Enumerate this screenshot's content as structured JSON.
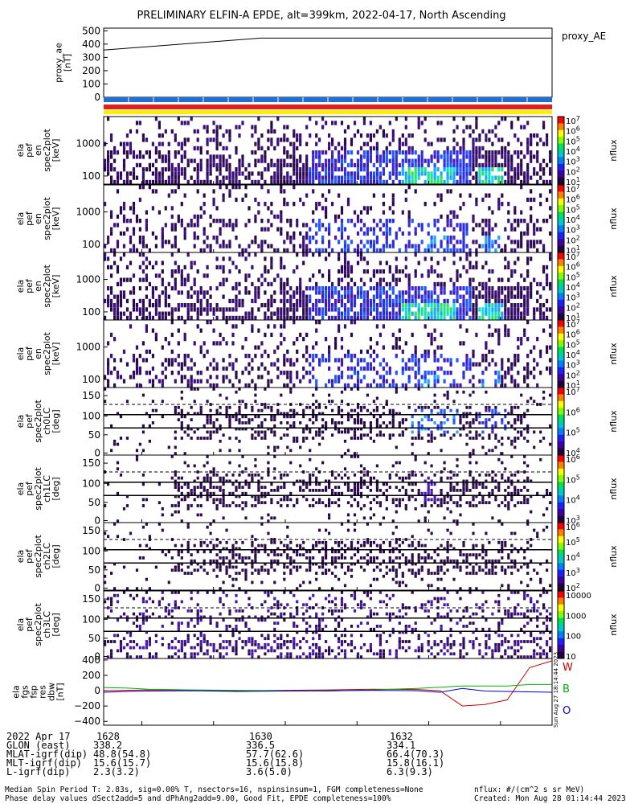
{
  "title": "PRELIMINARY ELFIN-A EPDE, alt=399km, 2022-04-17, North Ascending",
  "side_stamp": "Sun Aug 27 18:14:44 2023",
  "proxy_ae": {
    "legend": "proxy_AE",
    "ylabel": "proxy_ae\n[nT]",
    "ticks": [
      "500",
      "400",
      "300",
      "200",
      "100",
      "0"
    ],
    "ylim": [
      0,
      520
    ],
    "line": {
      "x": [
        0,
        0.35,
        1
      ],
      "y": [
        355,
        445,
        445
      ]
    }
  },
  "status_bars": {
    "colors": [
      "#1e6fd9",
      "#e02020",
      "#ffee00"
    ]
  },
  "spectrogram_panels": [
    {
      "kind": "energy",
      "label": "ela\npef\nen\nspec2plot\n[keV]",
      "ticks": [
        "1000",
        "100"
      ],
      "cb_label": "nflux",
      "cb_ticks": [
        "10^7",
        "10^6",
        "10^5",
        "10^4",
        "10^3",
        "10^2",
        "10^1"
      ],
      "hot": true
    },
    {
      "kind": "energy",
      "label": "ela\npef\nen\nspec2plot\n[keV]",
      "ticks": [
        "1000",
        "100"
      ],
      "cb_label": "nflux",
      "cb_ticks": [
        "10^7",
        "10^6",
        "10^5",
        "10^4",
        "10^3",
        "10^2",
        "10^1"
      ],
      "hot": false
    },
    {
      "kind": "energy",
      "label": "ela\npef\nen\nspec2plot\n[keV]",
      "ticks": [
        "1000",
        "100"
      ],
      "cb_label": "nflux",
      "cb_ticks": [
        "10^7",
        "10^6",
        "10^5",
        "10^4",
        "10^3",
        "10^2",
        "10^1"
      ],
      "hot": true
    },
    {
      "kind": "energy",
      "label": "ela\npef\nen\nspec2plot\n[keV]",
      "ticks": [
        "1000",
        "100"
      ],
      "cb_label": "nflux",
      "cb_ticks": [
        "10^7",
        "10^6",
        "10^5",
        "10^4",
        "10^3",
        "10^2",
        "10^1"
      ],
      "hot": false
    },
    {
      "kind": "pitch",
      "label": "ela\npef\nspec2plot\nch0LC\n[deg]",
      "ticks": [
        "150",
        "100",
        "50",
        "0"
      ],
      "cb_label": "nflux",
      "cb_ticks": [
        "10^7",
        "10^6",
        "10^5",
        "10^4"
      ],
      "hot": true
    },
    {
      "kind": "pitch",
      "label": "ela\npef\nspec2plot\nch1LC\n[deg]",
      "ticks": [
        "150",
        "100",
        "50",
        "0"
      ],
      "cb_label": "nflux",
      "cb_ticks": [
        "10^6",
        "10^5",
        "10^4",
        "10^3"
      ],
      "hot": false
    },
    {
      "kind": "pitch",
      "label": "ela\npef\nspec2plot\nch2LC\n[deg]",
      "ticks": [
        "150",
        "100",
        "50",
        "0"
      ],
      "cb_label": "nflux",
      "cb_ticks": [
        "10^6",
        "10^5",
        "10^4",
        "10^3",
        "10^2"
      ],
      "hot": false
    },
    {
      "kind": "pitch",
      "label": "ela\npef\nspec2plot\nch3LC\n[deg]",
      "ticks": [
        "150",
        "100",
        "50",
        "0"
      ],
      "cb_label": "nflux",
      "cb_ticks": [
        "10000",
        "1000",
        "100",
        "10"
      ],
      "hot": false
    }
  ],
  "fgm": {
    "label": "ela\nfgs\nfsp\nres\ndbw\n[nT]",
    "ticks": [
      "400",
      "200",
      "0",
      "-200",
      "-400"
    ],
    "ylim": [
      -450,
      420
    ],
    "legend": [
      {
        "name": "W",
        "color": "#d00000"
      },
      {
        "name": "B",
        "color": "#00b000"
      },
      {
        "name": "O",
        "color": "#0000d0"
      }
    ]
  },
  "chart_data": {
    "type": "line",
    "title": "PRELIMINARY ELFIN-A EPDE, alt=399km, 2022-04-17, North Ascending",
    "panels": [
      "proxy_ae",
      "ela pef en spec2plot (x4)",
      "ela pef spec2plot ch0LC..ch3LC",
      "ela fgs fsp res dbw"
    ],
    "x_ticks": [
      "1628",
      "1630",
      "1632"
    ],
    "x_norm": [
      0,
      0.05,
      0.1,
      0.2,
      0.3,
      0.4,
      0.5,
      0.6,
      0.7,
      0.75,
      0.8,
      0.85,
      0.9,
      0.95,
      1.0
    ],
    "series": [
      {
        "name": "proxy_AE",
        "values": [
          355,
          368,
          382,
          410,
          438,
          445,
          445,
          445,
          445,
          445,
          445,
          445,
          445,
          445,
          445
        ]
      },
      {
        "name": "W",
        "values": [
          0,
          5,
          10,
          5,
          0,
          5,
          10,
          20,
          15,
          0,
          -200,
          -180,
          -120,
          300,
          390
        ]
      },
      {
        "name": "B",
        "values": [
          40,
          35,
          20,
          10,
          5,
          0,
          -5,
          10,
          30,
          45,
          60,
          60,
          60,
          80,
          80
        ]
      },
      {
        "name": "O",
        "values": [
          -20,
          -10,
          -5,
          0,
          -10,
          -5,
          0,
          5,
          0,
          -20,
          30,
          -5,
          -10,
          -15,
          -20
        ]
      }
    ],
    "energy_ylim_keV": [
      50,
      7000
    ],
    "pitch_ylim_deg": [
      0,
      180
    ],
    "spectrogram_colorbar": "nflux"
  },
  "info": {
    "rows": [
      {
        "label": "2022 Apr 17",
        "values": [
          "1628",
          "1630",
          "1632"
        ]
      },
      {
        "label": "GLON (east)",
        "values": [
          "338.2",
          "336.5",
          "334.1"
        ]
      },
      {
        "label": "MLAT-igrf(dip)",
        "values": [
          "48.8(54.8)",
          "57.7(62.6)",
          "66.4(70.3)"
        ]
      },
      {
        "label": "MLT-igrf(dip)",
        "values": [
          "15.6(15.7)",
          "15.6(15.8)",
          "15.8(16.1)"
        ]
      },
      {
        "label": "L-igrf(dip)",
        "values": [
          "2.3(3.2)",
          "3.6(5.0)",
          "6.3(9.3)"
        ]
      }
    ]
  },
  "footer": {
    "line1": "Median Spin Period T: 2.83s, sig=0.00% T, nsectors=16, nspinsinsum=1, FGM completeness=None",
    "line2": "Phase delay values dSect2add=5 and dPhAng2add=9.00, Good Fit, EPDE completeness=100%",
    "right1": "nflux: #/(cm^2 s sr MeV)",
    "right2": "Created: Mon Aug 28 01:14:44 2023"
  }
}
